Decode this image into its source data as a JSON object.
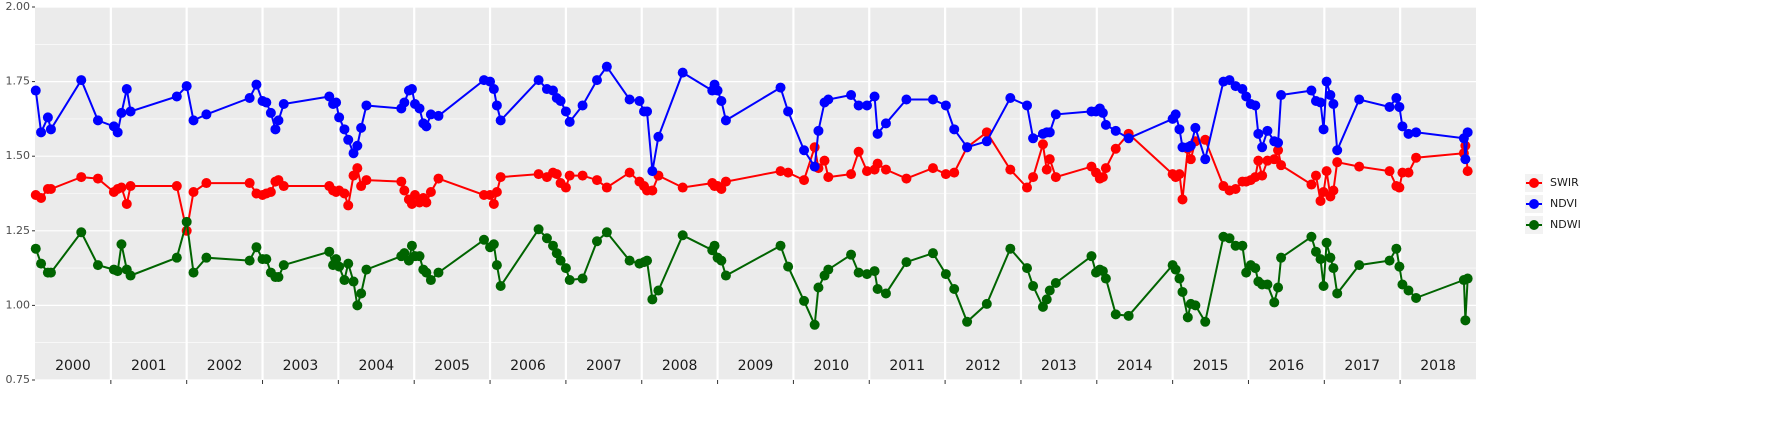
{
  "chart_data": {
    "type": "line",
    "x": [
      2000.01,
      2000.08,
      2000.17,
      2000.21,
      2000.61,
      2000.83,
      2001.04,
      2001.09,
      2001.14,
      2001.21,
      2001.26,
      2001.87,
      2002.0,
      2002.09,
      2002.26,
      2002.83,
      2002.92,
      2003.0,
      2003.05,
      2003.11,
      2003.17,
      2003.21,
      2003.28,
      2003.88,
      2003.93,
      2003.97,
      2004.01,
      2004.08,
      2004.13,
      2004.2,
      2004.25,
      2004.3,
      2004.37,
      2004.83,
      2004.87,
      2004.93,
      2004.97,
      2005.01,
      2005.07,
      2005.12,
      2005.16,
      2005.22,
      2005.32,
      2005.92,
      2006.0,
      2006.05,
      2006.09,
      2006.14,
      2006.64,
      2006.75,
      2006.83,
      2006.88,
      2006.93,
      2007.0,
      2007.05,
      2007.22,
      2007.41,
      2007.54,
      2007.84,
      2007.97,
      2008.03,
      2008.07,
      2008.14,
      2008.22,
      2008.54,
      2008.93,
      2008.96,
      2009.0,
      2009.05,
      2009.11,
      2009.83,
      2009.93,
      2010.14,
      2010.28,
      2010.33,
      2010.41,
      2010.46,
      2010.76,
      2010.86,
      2010.97,
      2011.07,
      2011.11,
      2011.22,
      2011.49,
      2011.84,
      2012.01,
      2012.12,
      2012.29,
      2012.55,
      2012.86,
      2013.08,
      2013.16,
      2013.29,
      2013.34,
      2013.38,
      2013.46,
      2013.93,
      2013.99,
      2014.04,
      2014.08,
      2014.12,
      2014.25,
      2014.42,
      2015.0,
      2015.04,
      2015.09,
      2015.13,
      2015.2,
      2015.24,
      2015.3,
      2015.43,
      2015.67,
      2015.75,
      2015.83,
      2015.92,
      2015.97,
      2016.03,
      2016.09,
      2016.13,
      2016.18,
      2016.25,
      2016.34,
      2016.39,
      2016.43,
      2016.83,
      2016.89,
      2016.95,
      2016.99,
      2017.03,
      2017.08,
      2017.12,
      2017.17,
      2017.46,
      2017.86,
      2017.95,
      2017.99,
      2018.03,
      2018.11,
      2018.21,
      2018.84,
      2018.86,
      2018.89
    ],
    "series": [
      {
        "name": "SWIR",
        "color": "#ff0000",
        "values": [
          1.37,
          1.36,
          1.39,
          1.39,
          1.43,
          1.425,
          1.38,
          1.39,
          1.395,
          1.34,
          1.4,
          1.4,
          1.25,
          1.38,
          1.41,
          1.41,
          1.375,
          1.37,
          1.375,
          1.38,
          1.415,
          1.42,
          1.4,
          1.4,
          1.385,
          1.38,
          1.385,
          1.375,
          1.335,
          1.435,
          1.46,
          1.4,
          1.42,
          1.415,
          1.385,
          1.355,
          1.34,
          1.37,
          1.345,
          1.36,
          1.345,
          1.38,
          1.425,
          1.37,
          1.37,
          1.34,
          1.38,
          1.43,
          1.44,
          1.43,
          1.445,
          1.44,
          1.41,
          1.395,
          1.435,
          1.435,
          1.42,
          1.395,
          1.445,
          1.415,
          1.4,
          1.385,
          1.385,
          1.435,
          1.395,
          1.41,
          1.4,
          1.4,
          1.39,
          1.415,
          1.45,
          1.445,
          1.42,
          1.53,
          1.46,
          1.485,
          1.43,
          1.44,
          1.515,
          1.45,
          1.455,
          1.475,
          1.455,
          1.425,
          1.46,
          1.44,
          1.445,
          1.53,
          1.58,
          1.455,
          1.395,
          1.43,
          1.54,
          1.455,
          1.49,
          1.43,
          1.465,
          1.445,
          1.425,
          1.43,
          1.46,
          1.525,
          1.575,
          1.44,
          1.43,
          1.44,
          1.355,
          1.525,
          1.49,
          1.55,
          1.555,
          1.4,
          1.385,
          1.39,
          1.415,
          1.415,
          1.42,
          1.43,
          1.485,
          1.435,
          1.485,
          1.49,
          1.52,
          1.47,
          1.405,
          1.435,
          1.35,
          1.38,
          1.45,
          1.365,
          1.385,
          1.48,
          1.465,
          1.45,
          1.4,
          1.395,
          1.445,
          1.445,
          1.495,
          1.51,
          1.535,
          1.45
        ]
      },
      {
        "name": "NDVI",
        "color": "#0000ff",
        "values": [
          1.72,
          1.58,
          1.63,
          1.59,
          1.755,
          1.62,
          1.6,
          1.58,
          1.645,
          1.725,
          1.65,
          1.7,
          1.735,
          1.62,
          1.64,
          1.695,
          1.74,
          1.685,
          1.68,
          1.645,
          1.59,
          1.62,
          1.675,
          1.7,
          1.675,
          1.68,
          1.63,
          1.59,
          1.555,
          1.51,
          1.535,
          1.595,
          1.67,
          1.66,
          1.68,
          1.72,
          1.725,
          1.675,
          1.66,
          1.61,
          1.6,
          1.64,
          1.635,
          1.755,
          1.75,
          1.725,
          1.67,
          1.62,
          1.755,
          1.725,
          1.72,
          1.695,
          1.685,
          1.65,
          1.615,
          1.67,
          1.755,
          1.8,
          1.69,
          1.685,
          1.65,
          1.65,
          1.45,
          1.565,
          1.78,
          1.72,
          1.74,
          1.72,
          1.685,
          1.62,
          1.73,
          1.65,
          1.52,
          1.465,
          1.585,
          1.68,
          1.69,
          1.705,
          1.67,
          1.67,
          1.7,
          1.575,
          1.61,
          1.69,
          1.69,
          1.67,
          1.59,
          1.53,
          1.55,
          1.695,
          1.67,
          1.56,
          1.575,
          1.58,
          1.58,
          1.64,
          1.65,
          1.65,
          1.66,
          1.645,
          1.605,
          1.585,
          1.56,
          1.625,
          1.64,
          1.59,
          1.53,
          1.53,
          1.535,
          1.595,
          1.49,
          1.75,
          1.755,
          1.735,
          1.725,
          1.7,
          1.675,
          1.67,
          1.575,
          1.53,
          1.585,
          1.55,
          1.545,
          1.705,
          1.72,
          1.685,
          1.68,
          1.59,
          1.75,
          1.705,
          1.675,
          1.52,
          1.69,
          1.665,
          1.695,
          1.665,
          1.6,
          1.575,
          1.58,
          1.56,
          1.49,
          1.58
        ]
      },
      {
        "name": "NDWI",
        "color": "#006400",
        "values": [
          1.19,
          1.14,
          1.11,
          1.11,
          1.245,
          1.135,
          1.12,
          1.115,
          1.205,
          1.12,
          1.1,
          1.16,
          1.28,
          1.11,
          1.16,
          1.15,
          1.195,
          1.155,
          1.155,
          1.11,
          1.095,
          1.095,
          1.135,
          1.18,
          1.135,
          1.155,
          1.13,
          1.085,
          1.14,
          1.08,
          1.0,
          1.04,
          1.12,
          1.165,
          1.175,
          1.15,
          1.2,
          1.165,
          1.165,
          1.12,
          1.11,
          1.085,
          1.11,
          1.22,
          1.195,
          1.205,
          1.135,
          1.065,
          1.255,
          1.225,
          1.2,
          1.175,
          1.15,
          1.125,
          1.085,
          1.09,
          1.215,
          1.245,
          1.15,
          1.14,
          1.145,
          1.15,
          1.02,
          1.05,
          1.235,
          1.185,
          1.2,
          1.16,
          1.15,
          1.1,
          1.2,
          1.13,
          1.015,
          0.935,
          1.06,
          1.1,
          1.12,
          1.17,
          1.11,
          1.105,
          1.115,
          1.055,
          1.04,
          1.145,
          1.175,
          1.105,
          1.055,
          0.945,
          1.005,
          1.19,
          1.125,
          1.065,
          0.995,
          1.02,
          1.05,
          1.075,
          1.165,
          1.11,
          1.12,
          1.115,
          1.09,
          0.97,
          0.965,
          1.135,
          1.12,
          1.09,
          1.045,
          0.96,
          1.005,
          1.0,
          0.945,
          1.23,
          1.225,
          1.2,
          1.2,
          1.11,
          1.135,
          1.125,
          1.08,
          1.07,
          1.07,
          1.01,
          1.06,
          1.16,
          1.23,
          1.18,
          1.155,
          1.065,
          1.21,
          1.16,
          1.125,
          1.04,
          1.135,
          1.15,
          1.19,
          1.13,
          1.07,
          1.05,
          1.025,
          1.085,
          0.95,
          1.09
        ]
      }
    ],
    "xlim": [
      2000,
      2019
    ],
    "xticks": [
      {
        "value": 2000.5,
        "label": "2000"
      },
      {
        "value": 2001.5,
        "label": "2001"
      },
      {
        "value": 2002.5,
        "label": "2002"
      },
      {
        "value": 2003.5,
        "label": "2003"
      },
      {
        "value": 2004.5,
        "label": "2004"
      },
      {
        "value": 2005.5,
        "label": "2005"
      },
      {
        "value": 2006.5,
        "label": "2006"
      },
      {
        "value": 2007.5,
        "label": "2007"
      },
      {
        "value": 2008.5,
        "label": "2008"
      },
      {
        "value": 2009.5,
        "label": "2009"
      },
      {
        "value": 2010.5,
        "label": "2010"
      },
      {
        "value": 2011.5,
        "label": "2011"
      },
      {
        "value": 2012.5,
        "label": "2012"
      },
      {
        "value": 2013.5,
        "label": "2013"
      },
      {
        "value": 2014.5,
        "label": "2014"
      },
      {
        "value": 2015.5,
        "label": "2015"
      },
      {
        "value": 2016.5,
        "label": "2016"
      },
      {
        "value": 2017.5,
        "label": "2017"
      },
      {
        "value": 2018.5,
        "label": "2018"
      }
    ],
    "ylim": [
      0.75,
      2.0
    ],
    "yticks": [
      {
        "value": 0.75,
        "label": "0.75"
      },
      {
        "value": 1.0,
        "label": "1.00"
      },
      {
        "value": 1.25,
        "label": "1.25"
      },
      {
        "value": 1.5,
        "label": "1.50"
      },
      {
        "value": 1.75,
        "label": "1.75"
      },
      {
        "value": 2.0,
        "label": "2.00"
      }
    ],
    "grid": true,
    "legend": "right"
  }
}
